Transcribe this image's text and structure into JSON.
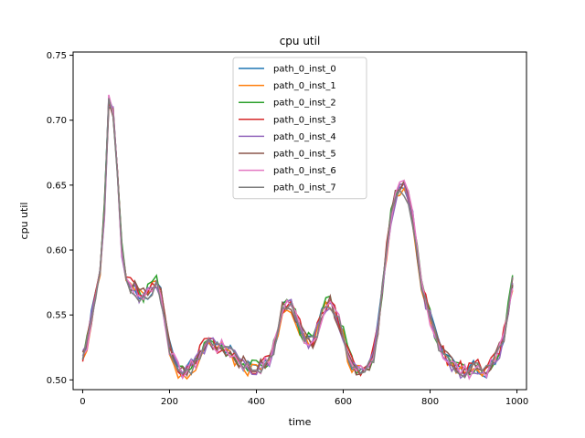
{
  "chart_data": {
    "type": "line",
    "title": "cpu util",
    "xlabel": "time",
    "ylabel": "cpu util",
    "xlim": [
      -22,
      1022
    ],
    "ylim": [
      0.4925,
      0.7525
    ],
    "xticks": [
      0,
      200,
      400,
      600,
      800,
      1000
    ],
    "yticks": [
      0.5,
      0.55,
      0.6,
      0.65,
      0.7,
      0.75
    ],
    "ytick_labels": [
      "0.50",
      "0.55",
      "0.60",
      "0.65",
      "0.70",
      "0.75"
    ],
    "grid": false,
    "legend_position": "upper center",
    "series": [
      {
        "name": "path_0_inst_0",
        "color": "#1f77b4",
        "offset": 0.0,
        "noise_seed": 1
      },
      {
        "name": "path_0_inst_1",
        "color": "#ff7f0e",
        "offset": -0.001,
        "noise_seed": 2
      },
      {
        "name": "path_0_inst_2",
        "color": "#2ca02c",
        "offset": 0.001,
        "noise_seed": 3
      },
      {
        "name": "path_0_inst_3",
        "color": "#d62728",
        "offset": 0.0015,
        "noise_seed": 4
      },
      {
        "name": "path_0_inst_4",
        "color": "#9467bd",
        "offset": -0.0005,
        "noise_seed": 5
      },
      {
        "name": "path_0_inst_5",
        "color": "#8c564b",
        "offset": 0.0005,
        "noise_seed": 6
      },
      {
        "name": "path_0_inst_6",
        "color": "#e377c2",
        "offset": 0.0,
        "noise_seed": 7
      },
      {
        "name": "path_0_inst_7",
        "color": "#7f7f7f",
        "offset": -0.001,
        "noise_seed": 8
      }
    ],
    "base_curve": {
      "x": [
        0,
        10,
        20,
        30,
        40,
        50,
        60,
        70,
        80,
        90,
        100,
        110,
        120,
        130,
        140,
        150,
        160,
        170,
        180,
        190,
        200,
        210,
        220,
        230,
        240,
        250,
        260,
        270,
        280,
        290,
        300,
        310,
        320,
        330,
        340,
        350,
        360,
        370,
        380,
        390,
        400,
        410,
        420,
        430,
        440,
        450,
        460,
        470,
        480,
        490,
        500,
        510,
        520,
        530,
        540,
        550,
        560,
        570,
        580,
        590,
        600,
        610,
        620,
        630,
        640,
        650,
        660,
        670,
        680,
        690,
        700,
        710,
        720,
        730,
        740,
        750,
        760,
        770,
        780,
        790,
        800,
        810,
        820,
        830,
        840,
        850,
        860,
        870,
        880,
        890,
        900,
        910,
        920,
        930,
        940,
        950,
        960,
        970,
        980,
        990
      ],
      "y": [
        0.518,
        0.528,
        0.548,
        0.565,
        0.585,
        0.63,
        0.715,
        0.705,
        0.66,
        0.6,
        0.575,
        0.572,
        0.57,
        0.565,
        0.565,
        0.568,
        0.572,
        0.575,
        0.565,
        0.545,
        0.525,
        0.515,
        0.508,
        0.506,
        0.507,
        0.51,
        0.513,
        0.52,
        0.525,
        0.53,
        0.528,
        0.525,
        0.525,
        0.523,
        0.521,
        0.518,
        0.515,
        0.512,
        0.51,
        0.509,
        0.509,
        0.51,
        0.512,
        0.515,
        0.525,
        0.54,
        0.555,
        0.56,
        0.558,
        0.55,
        0.54,
        0.533,
        0.53,
        0.53,
        0.538,
        0.55,
        0.557,
        0.558,
        0.553,
        0.545,
        0.535,
        0.52,
        0.512,
        0.508,
        0.507,
        0.508,
        0.512,
        0.52,
        0.54,
        0.57,
        0.6,
        0.625,
        0.64,
        0.648,
        0.648,
        0.64,
        0.625,
        0.6,
        0.575,
        0.56,
        0.548,
        0.537,
        0.528,
        0.52,
        0.515,
        0.512,
        0.51,
        0.507,
        0.506,
        0.507,
        0.509,
        0.51,
        0.508,
        0.507,
        0.51,
        0.515,
        0.523,
        0.535,
        0.555,
        0.575
      ]
    }
  }
}
